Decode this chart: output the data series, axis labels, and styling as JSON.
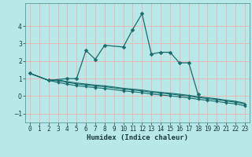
{
  "xlabel": "Humidex (Indice chaleur)",
  "background_color": "#b8e8e8",
  "grid_color": "#e8b8b8",
  "line_color": "#1a6b6b",
  "main_x": [
    0,
    2,
    4,
    5,
    6,
    7,
    8,
    10,
    11,
    12,
    13,
    14,
    15,
    16,
    17,
    18
  ],
  "main_y": [
    1.3,
    0.9,
    1.0,
    1.0,
    2.6,
    2.1,
    2.9,
    2.8,
    3.8,
    4.7,
    2.4,
    2.5,
    2.5,
    1.9,
    1.9,
    0.1
  ],
  "flat1_x": [
    0,
    2,
    3,
    4,
    5,
    6,
    7,
    8,
    10,
    11,
    12,
    13,
    14,
    15,
    16,
    17,
    18,
    19,
    20,
    21,
    22,
    23
  ],
  "flat1_y": [
    1.3,
    0.9,
    0.78,
    0.68,
    0.6,
    0.54,
    0.48,
    0.44,
    0.3,
    0.25,
    0.2,
    0.12,
    0.07,
    0.02,
    -0.04,
    -0.1,
    -0.18,
    -0.24,
    -0.3,
    -0.38,
    -0.44,
    -0.55
  ],
  "flat2_x": [
    0,
    2,
    3,
    4,
    5,
    6,
    7,
    8,
    10,
    11,
    12,
    13,
    14,
    15,
    16,
    17,
    18,
    19,
    20,
    21,
    22,
    23
  ],
  "flat2_y": [
    1.3,
    0.9,
    0.88,
    0.78,
    0.7,
    0.64,
    0.58,
    0.54,
    0.4,
    0.35,
    0.3,
    0.22,
    0.17,
    0.12,
    0.06,
    0.0,
    -0.08,
    -0.14,
    -0.2,
    -0.28,
    -0.34,
    -0.45
  ],
  "flat3_x": [
    0,
    2,
    3,
    4,
    5,
    6,
    7,
    8,
    10,
    11,
    12,
    13,
    14,
    15,
    16,
    17,
    18,
    19,
    20,
    21,
    22,
    23
  ],
  "flat3_y": [
    1.3,
    0.9,
    0.93,
    0.83,
    0.75,
    0.69,
    0.63,
    0.59,
    0.45,
    0.4,
    0.35,
    0.27,
    0.22,
    0.17,
    0.11,
    0.05,
    -0.03,
    -0.09,
    -0.15,
    -0.23,
    -0.29,
    -0.4
  ],
  "ylim": [
    -1.5,
    5.3
  ],
  "xlim": [
    -0.5,
    23.5
  ],
  "yticks": [
    -1,
    0,
    1,
    2,
    3,
    4
  ],
  "xticks": [
    0,
    1,
    2,
    3,
    4,
    5,
    6,
    7,
    8,
    9,
    10,
    11,
    12,
    13,
    14,
    15,
    16,
    17,
    18,
    19,
    20,
    21,
    22,
    23
  ]
}
